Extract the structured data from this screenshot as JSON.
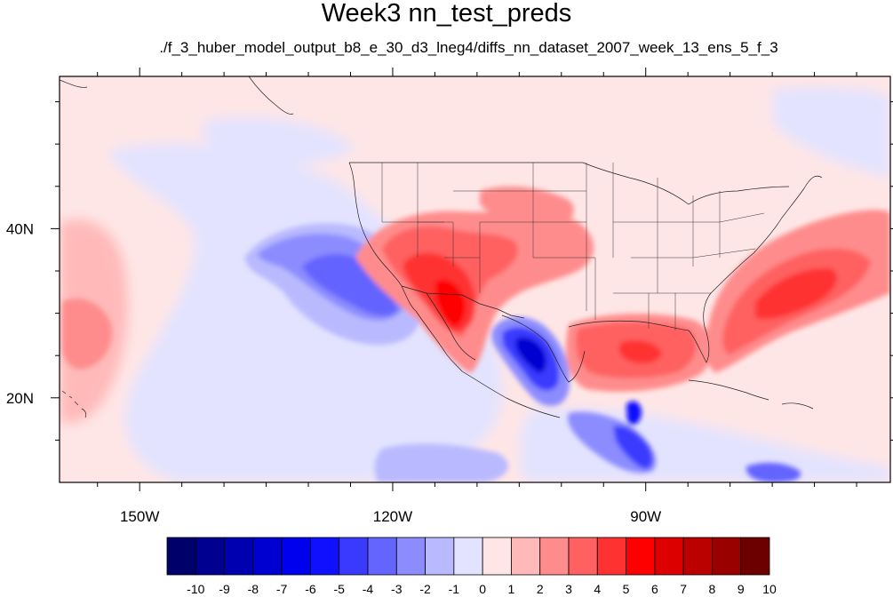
{
  "title": "Week3 nn_test_preds",
  "subtitle": "./f_3_huber_model_output_b8_e_30_d3_lneg4/diffs_nn_dataset_2007_week_13_ens_5_f_3",
  "map": {
    "projection": "cylindrical-equidistant",
    "lon_range": [
      -159.5,
      -61
    ],
    "lat_range": [
      10,
      58
    ],
    "lon_ticks": [
      {
        "value": -150,
        "label": "150W"
      },
      {
        "value": -120,
        "label": "120W"
      },
      {
        "value": -90,
        "label": "90W"
      }
    ],
    "lat_ticks": [
      {
        "value": 40,
        "label": "40N"
      },
      {
        "value": 20,
        "label": "20N"
      }
    ]
  },
  "colorbar": {
    "labels": [
      "-10",
      "-9",
      "-8",
      "-7",
      "-6",
      "-5",
      "-4",
      "-3",
      "-2",
      "-1",
      "0",
      "1",
      "2",
      "3",
      "4",
      "5",
      "6",
      "7",
      "8",
      "9",
      "10"
    ],
    "colors": [
      "#00006a",
      "#000090",
      "#0000b0",
      "#0000d0",
      "#0000ee",
      "#1010ff",
      "#3a3aff",
      "#6464ff",
      "#8c8cff",
      "#b9b9ff",
      "#e3e3ff",
      "#ffe6e6",
      "#ffb9b9",
      "#ff8c8c",
      "#ff6060",
      "#ff3232",
      "#ff0000",
      "#dd0000",
      "#bb0000",
      "#990000",
      "#6c0000"
    ]
  },
  "field_features": [
    {
      "name": "Pacific negative anomaly",
      "level": -2,
      "lon": -128,
      "lat": 36.5,
      "rlon": 10.5,
      "rlat": 6
    },
    {
      "name": "Pacific negative core",
      "level": -4,
      "lon": -127,
      "lat": 35,
      "rlon": 6,
      "rlat": 3.5
    },
    {
      "name": "Southwest US warm anomaly",
      "level": 3,
      "lon": -112,
      "lat": 36.5,
      "rlon": 7,
      "rlat": 4
    },
    {
      "name": "Southwest US warm core",
      "level": 5,
      "lon": -111,
      "lat": 34,
      "rlon": 3.5,
      "rlat": 3
    },
    {
      "name": "Gulf of Mexico warm anomaly",
      "level": 3,
      "lon": -88,
      "lat": 26.5,
      "rlon": 7,
      "rlat": 3.5
    },
    {
      "name": "Mexico cold anomaly",
      "level": -6,
      "lon": -100,
      "lat": 25.5,
      "rlon": 3,
      "rlat": 3.5
    },
    {
      "name": "Western Atlantic warm anomaly",
      "level": 4,
      "lon": -70,
      "lat": 33,
      "rlon": 9,
      "rlat": 5
    },
    {
      "name": "Central America cold anomaly",
      "level": -5,
      "lon": -87,
      "lat": 14,
      "rlon": 2.5,
      "rlat": 3
    }
  ]
}
